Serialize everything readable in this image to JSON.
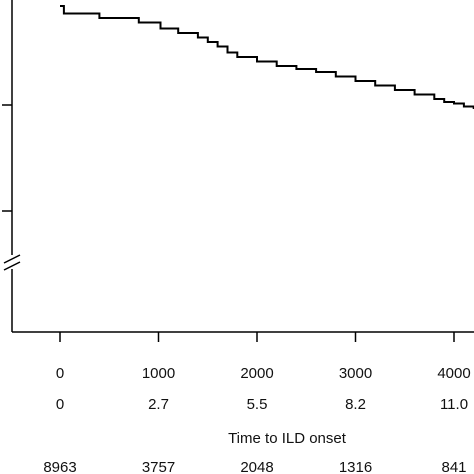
{
  "chart_data": {
    "type": "line",
    "xlabel": "Time to ILD onset",
    "x_ticks": [
      0,
      1000,
      2000,
      3000,
      4000
    ],
    "x_tick_labels": [
      "0",
      "1000",
      "2000",
      "3000",
      "4000"
    ],
    "x_secondary_tick_labels": [
      "0",
      "2.7",
      "5.5",
      "8.2",
      "11.0"
    ],
    "at_risk": [
      "8963",
      "3757",
      "2048",
      "1316",
      "841"
    ],
    "y_axis_break": true,
    "grid": false,
    "series": [
      {
        "step": true,
        "color": "#000000",
        "x": [
          0,
          40,
          400,
          800,
          1020,
          1200,
          1400,
          1500,
          1600,
          1700,
          1800,
          2000,
          2200,
          2400,
          2600,
          2800,
          3000,
          3200,
          3400,
          3600,
          3800,
          3900,
          4000,
          4100,
          4200
        ],
        "y": [
          0.98,
          0.955,
          0.94,
          0.925,
          0.905,
          0.89,
          0.875,
          0.86,
          0.845,
          0.825,
          0.81,
          0.795,
          0.78,
          0.77,
          0.76,
          0.745,
          0.73,
          0.715,
          0.7,
          0.685,
          0.67,
          0.66,
          0.655,
          0.645,
          0.64
        ]
      }
    ]
  }
}
